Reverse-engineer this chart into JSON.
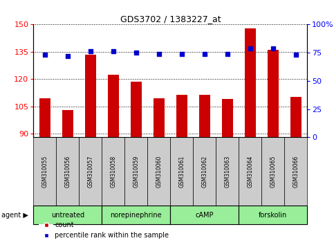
{
  "title": "GDS3702 / 1383227_at",
  "samples": [
    "GSM310055",
    "GSM310056",
    "GSM310057",
    "GSM310058",
    "GSM310059",
    "GSM310060",
    "GSM310061",
    "GSM310062",
    "GSM310063",
    "GSM310064",
    "GSM310065",
    "GSM310066"
  ],
  "counts": [
    109.5,
    103.0,
    133.5,
    122.5,
    118.5,
    109.5,
    111.5,
    111.5,
    109.0,
    148.0,
    136.0,
    110.0
  ],
  "percentiles": [
    73,
    72,
    76,
    76,
    75,
    74,
    74,
    74,
    74,
    79,
    79,
    73
  ],
  "agents": [
    {
      "label": "untreated",
      "start": 0,
      "end": 3
    },
    {
      "label": "norepinephrine",
      "start": 3,
      "end": 6
    },
    {
      "label": "cAMP",
      "start": 6,
      "end": 9
    },
    {
      "label": "forskolin",
      "start": 9,
      "end": 12
    }
  ],
  "ylim_left": [
    88,
    150
  ],
  "ylim_right": [
    0,
    100
  ],
  "yticks_left": [
    90,
    105,
    120,
    135,
    150
  ],
  "yticks_right": [
    0,
    25,
    50,
    75,
    100
  ],
  "bar_color": "#CC0000",
  "dot_color": "#0000CC",
  "bar_width": 0.5,
  "agent_box_color": "#99ee99",
  "sample_box_color": "#cccccc",
  "fig_width": 4.83,
  "fig_height": 3.54,
  "dpi": 100
}
